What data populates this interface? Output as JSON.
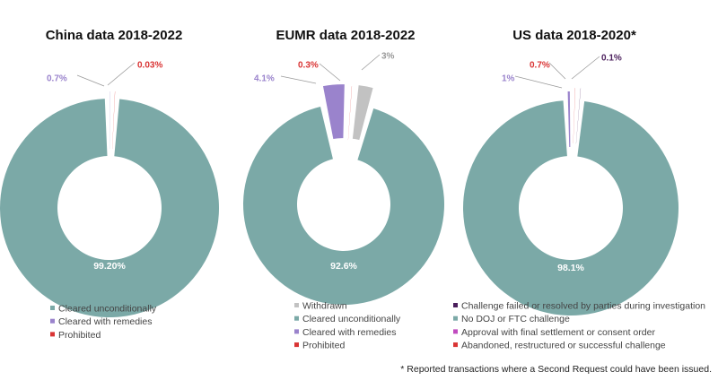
{
  "colors": {
    "teal": "#7ba9a7",
    "purple": "#9a83cc",
    "red": "#d93434",
    "gray": "#c2c2c2",
    "dark_purple": "#4b1f5c",
    "magenta": "#c04bbf"
  },
  "footnote": "* Reported transactions where a Second Request could have been issued.",
  "chart_data": [
    {
      "type": "pie",
      "title": "China data 2018-2022",
      "slices": [
        {
          "name": "Cleared unconditionally",
          "value": 99.2,
          "label": "99.20%",
          "color": "#7ba9a7",
          "label_color": "#ffffff"
        },
        {
          "name": "Cleared with remedies",
          "value": 0.7,
          "label": "0.7%",
          "color": "#9a83cc",
          "label_color": "#9a83cc"
        },
        {
          "name": "Prohibited",
          "value": 0.03,
          "label": "0.03%",
          "color": "#d93434",
          "label_color": "#d93434"
        }
      ],
      "legend": [
        "Cleared unconditionally",
        "Cleared with remedies",
        "Prohibited"
      ]
    },
    {
      "type": "pie",
      "title": "EUMR data 2018-2022",
      "slices": [
        {
          "name": "Withdrawn",
          "value": 3,
          "label": "3%",
          "color": "#c2c2c2",
          "label_color": "#999999"
        },
        {
          "name": "Cleared unconditionally",
          "value": 92.6,
          "label": "92.6%",
          "color": "#7ba9a7",
          "label_color": "#ffffff"
        },
        {
          "name": "Cleared with remedies",
          "value": 4.1,
          "label": "4.1%",
          "color": "#9a83cc",
          "label_color": "#9a83cc"
        },
        {
          "name": "Prohibited",
          "value": 0.3,
          "label": "0.3%",
          "color": "#d93434",
          "label_color": "#d93434"
        }
      ],
      "legend": [
        "Withdrawn",
        "Cleared unconditionally",
        "Cleared with remedies",
        "Prohibited"
      ]
    },
    {
      "type": "pie",
      "title": "US data 2018-2020*",
      "slices": [
        {
          "name": "No DOJ or FTC challenge",
          "value": 98.1,
          "label": "98.1%",
          "color": "#7ba9a7",
          "label_color": "#ffffff"
        },
        {
          "name": "Approval with final settlement or consent order",
          "value": 1,
          "label": "1%",
          "color": "#9a83cc",
          "label_color": "#9a83cc"
        },
        {
          "name": "Abandoned, restructured or successful challenge",
          "value": 0.7,
          "label": "0.7%",
          "color": "#d93434",
          "label_color": "#d93434"
        },
        {
          "name": "Challenge failed or resolved by parties during investigation",
          "value": 0.1,
          "label": "0.1%",
          "color": "#4b1f5c",
          "label_color": "#4b1f5c"
        }
      ],
      "legend": [
        "Challenge failed or resolved by parties during investigation",
        "No DOJ or FTC challenge",
        "Approval with final settlement or consent order",
        "Abandoned, restructured or successful challenge"
      ],
      "legend_colors": [
        "#4b1f5c",
        "#7ba9a7",
        "#c04bbf",
        "#d93434"
      ]
    }
  ]
}
